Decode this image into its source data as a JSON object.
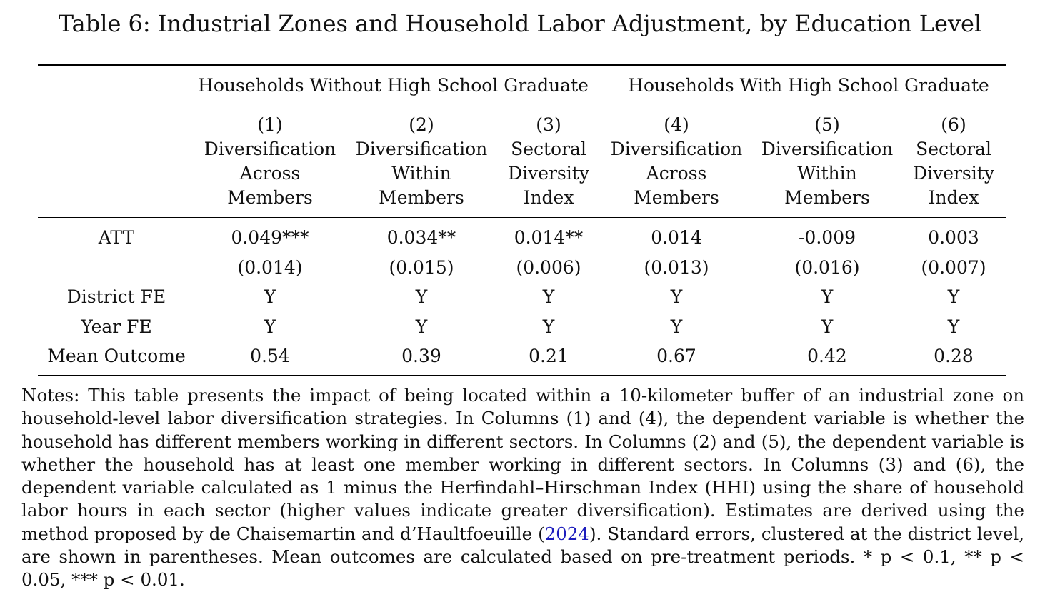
{
  "title": "Table 6: Industrial Zones and Household Labor Adjustment, by Education Level",
  "groups": [
    "Households Without High School Graduate",
    "Households With High School Graduate"
  ],
  "columns": [
    {
      "number": "(1)",
      "line1": "Diversification",
      "line2": "Across",
      "line3": "Members"
    },
    {
      "number": "(2)",
      "line1": "Diversification",
      "line2": "Within",
      "line3": "Members"
    },
    {
      "number": "(3)",
      "line1": "Sectoral",
      "line2": "Diversity",
      "line3": "Index"
    },
    {
      "number": "(4)",
      "line1": "Diversification",
      "line2": "Across",
      "line3": "Members"
    },
    {
      "number": "(5)",
      "line1": "Diversification",
      "line2": "Within",
      "line3": "Members"
    },
    {
      "number": "(6)",
      "line1": "Sectoral",
      "line2": "Diversity",
      "line3": "Index"
    }
  ],
  "rows": [
    {
      "label": "ATT",
      "values": [
        "0.049***",
        "0.034**",
        "0.014**",
        "0.014",
        "-0.009",
        "0.003"
      ]
    },
    {
      "label": "",
      "values": [
        "(0.014)",
        "(0.015)",
        "(0.006)",
        "(0.013)",
        "(0.016)",
        "(0.007)"
      ]
    },
    {
      "label": "District FE",
      "values": [
        "Y",
        "Y",
        "Y",
        "Y",
        "Y",
        "Y"
      ]
    },
    {
      "label": "Year FE",
      "values": [
        "Y",
        "Y",
        "Y",
        "Y",
        "Y",
        "Y"
      ]
    },
    {
      "label": "Mean Outcome",
      "values": [
        "0.54",
        "0.39",
        "0.21",
        "0.67",
        "0.42",
        "0.28"
      ]
    }
  ],
  "notes": {
    "before_cite": "Notes: This table presents the impact of being located within a 10-kilometer buffer of an industrial zone on household-level labor diversification strategies. In Columns (1) and (4), the dependent variable is whether the household has different members working in different sectors. In Columns (2) and (5), the dependent variable is whether the household has at least one member working in different sectors. In Columns (3) and (6), the dependent variable calculated as 1 minus the Herfindahl–Hirschman Index (HHI) using the share of household labor hours in each sector (higher values indicate greater diversification). Estimates are derived using the method proposed by de Chaisemartin and d’Haultfoeuille (",
    "cite": "2024",
    "after_cite": "). Standard errors, clustered at the district level, are shown in parentheses. Mean outcomes are calculated based on pre-treatment periods. * p < 0.1, ** p < 0.05, *** p < 0.01."
  }
}
